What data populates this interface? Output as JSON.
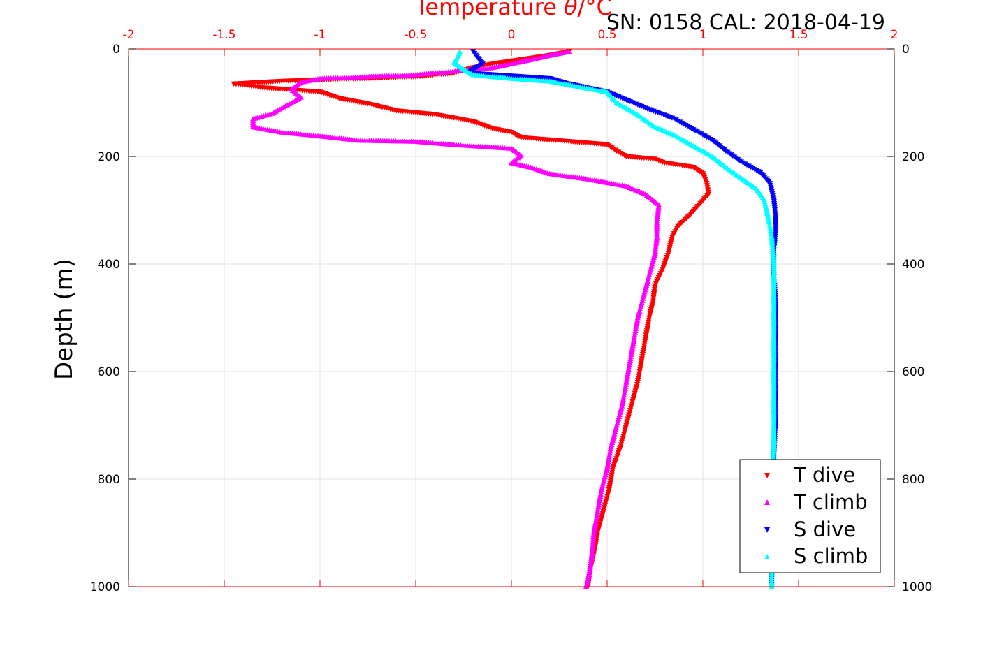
{
  "chart_data": {
    "type": "scatter",
    "title": "SN: 0158  CAL: 2018-04-19",
    "xlabel": "Temperature θ/°C",
    "xlabel_prefix": "Temperature ",
    "xlabel_symbol": "θ",
    "xlabel_suffix": "/°C",
    "ylabel": "Depth (m)",
    "xlim": [
      -2,
      2
    ],
    "ylim": [
      0,
      1000
    ],
    "y_reversed": true,
    "x_ticks": [
      "-2",
      "-1.5",
      "-1",
      "-0.5",
      "0",
      "0.5",
      "1",
      "1.5",
      "2"
    ],
    "y_ticks_left": [
      "0",
      "200",
      "400",
      "600",
      "800",
      "1000"
    ],
    "y_ticks_right": [
      "0",
      "200",
      "400",
      "600",
      "800",
      "1000"
    ],
    "grid": true,
    "legend_placement": "bottom-right",
    "series": [
      {
        "name": "T dive",
        "marker": "triangle-down",
        "color": "#ff0000",
        "points": [
          [
            0.3,
            5
          ],
          [
            0.2,
            12
          ],
          [
            0.05,
            20
          ],
          [
            -0.1,
            28
          ],
          [
            -0.2,
            35
          ],
          [
            -0.3,
            45
          ],
          [
            -0.5,
            52
          ],
          [
            -1.2,
            60
          ],
          [
            -1.45,
            65
          ],
          [
            -1.3,
            72
          ],
          [
            -1.0,
            80
          ],
          [
            -0.9,
            92
          ],
          [
            -0.75,
            102
          ],
          [
            -0.6,
            115
          ],
          [
            -0.4,
            122
          ],
          [
            -0.2,
            135
          ],
          [
            -0.1,
            148
          ],
          [
            0.0,
            155
          ],
          [
            0.05,
            165
          ],
          [
            0.3,
            172
          ],
          [
            0.5,
            178
          ],
          [
            0.55,
            190
          ],
          [
            0.6,
            200
          ],
          [
            0.75,
            205
          ],
          [
            0.8,
            212
          ],
          [
            0.95,
            220
          ],
          [
            1.0,
            232
          ],
          [
            1.02,
            250
          ],
          [
            1.03,
            270
          ],
          [
            0.98,
            290
          ],
          [
            0.93,
            310
          ],
          [
            0.87,
            330
          ],
          [
            0.84,
            350
          ],
          [
            0.82,
            380
          ],
          [
            0.79,
            410
          ],
          [
            0.75,
            440
          ],
          [
            0.74,
            470
          ],
          [
            0.72,
            500
          ],
          [
            0.7,
            540
          ],
          [
            0.68,
            580
          ],
          [
            0.66,
            620
          ],
          [
            0.63,
            660
          ],
          [
            0.6,
            700
          ],
          [
            0.57,
            740
          ],
          [
            0.53,
            780
          ],
          [
            0.51,
            820
          ],
          [
            0.48,
            860
          ],
          [
            0.45,
            900
          ],
          [
            0.43,
            940
          ],
          [
            0.41,
            970
          ],
          [
            0.4,
            1000
          ]
        ]
      },
      {
        "name": "T climb",
        "marker": "triangle-up",
        "color": "#ff00ff",
        "points": [
          [
            0.3,
            5
          ],
          [
            0.2,
            12
          ],
          [
            0.1,
            20
          ],
          [
            -0.1,
            35
          ],
          [
            -0.5,
            48
          ],
          [
            -1.0,
            55
          ],
          [
            -1.1,
            62
          ],
          [
            -1.15,
            75
          ],
          [
            -1.1,
            90
          ],
          [
            -1.15,
            100
          ],
          [
            -1.25,
            120
          ],
          [
            -1.35,
            130
          ],
          [
            -1.35,
            145
          ],
          [
            -1.2,
            155
          ],
          [
            -1.0,
            162
          ],
          [
            -0.8,
            170
          ],
          [
            -0.5,
            172
          ],
          [
            -0.3,
            178
          ],
          [
            0.0,
            185
          ],
          [
            0.05,
            198
          ],
          [
            0.0,
            212
          ],
          [
            0.1,
            220
          ],
          [
            0.2,
            232
          ],
          [
            0.4,
            242
          ],
          [
            0.6,
            255
          ],
          [
            0.7,
            270
          ],
          [
            0.77,
            290
          ],
          [
            0.76,
            320
          ],
          [
            0.76,
            350
          ],
          [
            0.75,
            380
          ],
          [
            0.72,
            420
          ],
          [
            0.69,
            460
          ],
          [
            0.66,
            500
          ],
          [
            0.64,
            540
          ],
          [
            0.62,
            580
          ],
          [
            0.6,
            620
          ],
          [
            0.58,
            660
          ],
          [
            0.55,
            700
          ],
          [
            0.52,
            740
          ],
          [
            0.5,
            780
          ],
          [
            0.47,
            820
          ],
          [
            0.45,
            860
          ],
          [
            0.43,
            900
          ],
          [
            0.42,
            940
          ],
          [
            0.41,
            970
          ],
          [
            0.39,
            1000
          ]
        ]
      },
      {
        "name": "S dive",
        "marker": "triangle-down",
        "color": "#0000ff",
        "points": [
          [
            -0.2,
            5
          ],
          [
            -0.18,
            15
          ],
          [
            -0.15,
            28
          ],
          [
            -0.2,
            38
          ],
          [
            -0.22,
            45
          ],
          [
            0.2,
            55
          ],
          [
            0.3,
            65
          ],
          [
            0.5,
            80
          ],
          [
            0.6,
            95
          ],
          [
            0.7,
            110
          ],
          [
            0.85,
            130
          ],
          [
            0.95,
            150
          ],
          [
            1.05,
            170
          ],
          [
            1.12,
            190
          ],
          [
            1.2,
            210
          ],
          [
            1.3,
            230
          ],
          [
            1.35,
            250
          ],
          [
            1.37,
            280
          ],
          [
            1.38,
            310
          ],
          [
            1.38,
            340
          ],
          [
            1.37,
            380
          ],
          [
            1.37,
            420
          ],
          [
            1.38,
            470
          ],
          [
            1.38,
            520
          ],
          [
            1.38,
            580
          ],
          [
            1.38,
            640
          ],
          [
            1.38,
            700
          ],
          [
            1.37,
            760
          ],
          [
            1.37,
            820
          ],
          [
            1.37,
            880
          ],
          [
            1.36,
            940
          ],
          [
            1.36,
            1000
          ]
        ]
      },
      {
        "name": "S climb",
        "marker": "triangle-up",
        "color": "#00ffff",
        "points": [
          [
            -0.27,
            5
          ],
          [
            -0.28,
            15
          ],
          [
            -0.3,
            25
          ],
          [
            -0.25,
            38
          ],
          [
            -0.2,
            48
          ],
          [
            0.0,
            55
          ],
          [
            0.2,
            60
          ],
          [
            0.35,
            70
          ],
          [
            0.5,
            80
          ],
          [
            0.55,
            100
          ],
          [
            0.65,
            120
          ],
          [
            0.75,
            145
          ],
          [
            0.85,
            160
          ],
          [
            0.95,
            180
          ],
          [
            1.05,
            200
          ],
          [
            1.12,
            220
          ],
          [
            1.2,
            240
          ],
          [
            1.28,
            260
          ],
          [
            1.32,
            280
          ],
          [
            1.34,
            310
          ],
          [
            1.36,
            350
          ],
          [
            1.37,
            400
          ],
          [
            1.37,
            450
          ],
          [
            1.37,
            500
          ],
          [
            1.37,
            560
          ],
          [
            1.37,
            620
          ],
          [
            1.37,
            680
          ],
          [
            1.37,
            740
          ],
          [
            1.36,
            800
          ],
          [
            1.36,
            860
          ],
          [
            1.36,
            920
          ],
          [
            1.36,
            1000
          ]
        ]
      }
    ]
  }
}
